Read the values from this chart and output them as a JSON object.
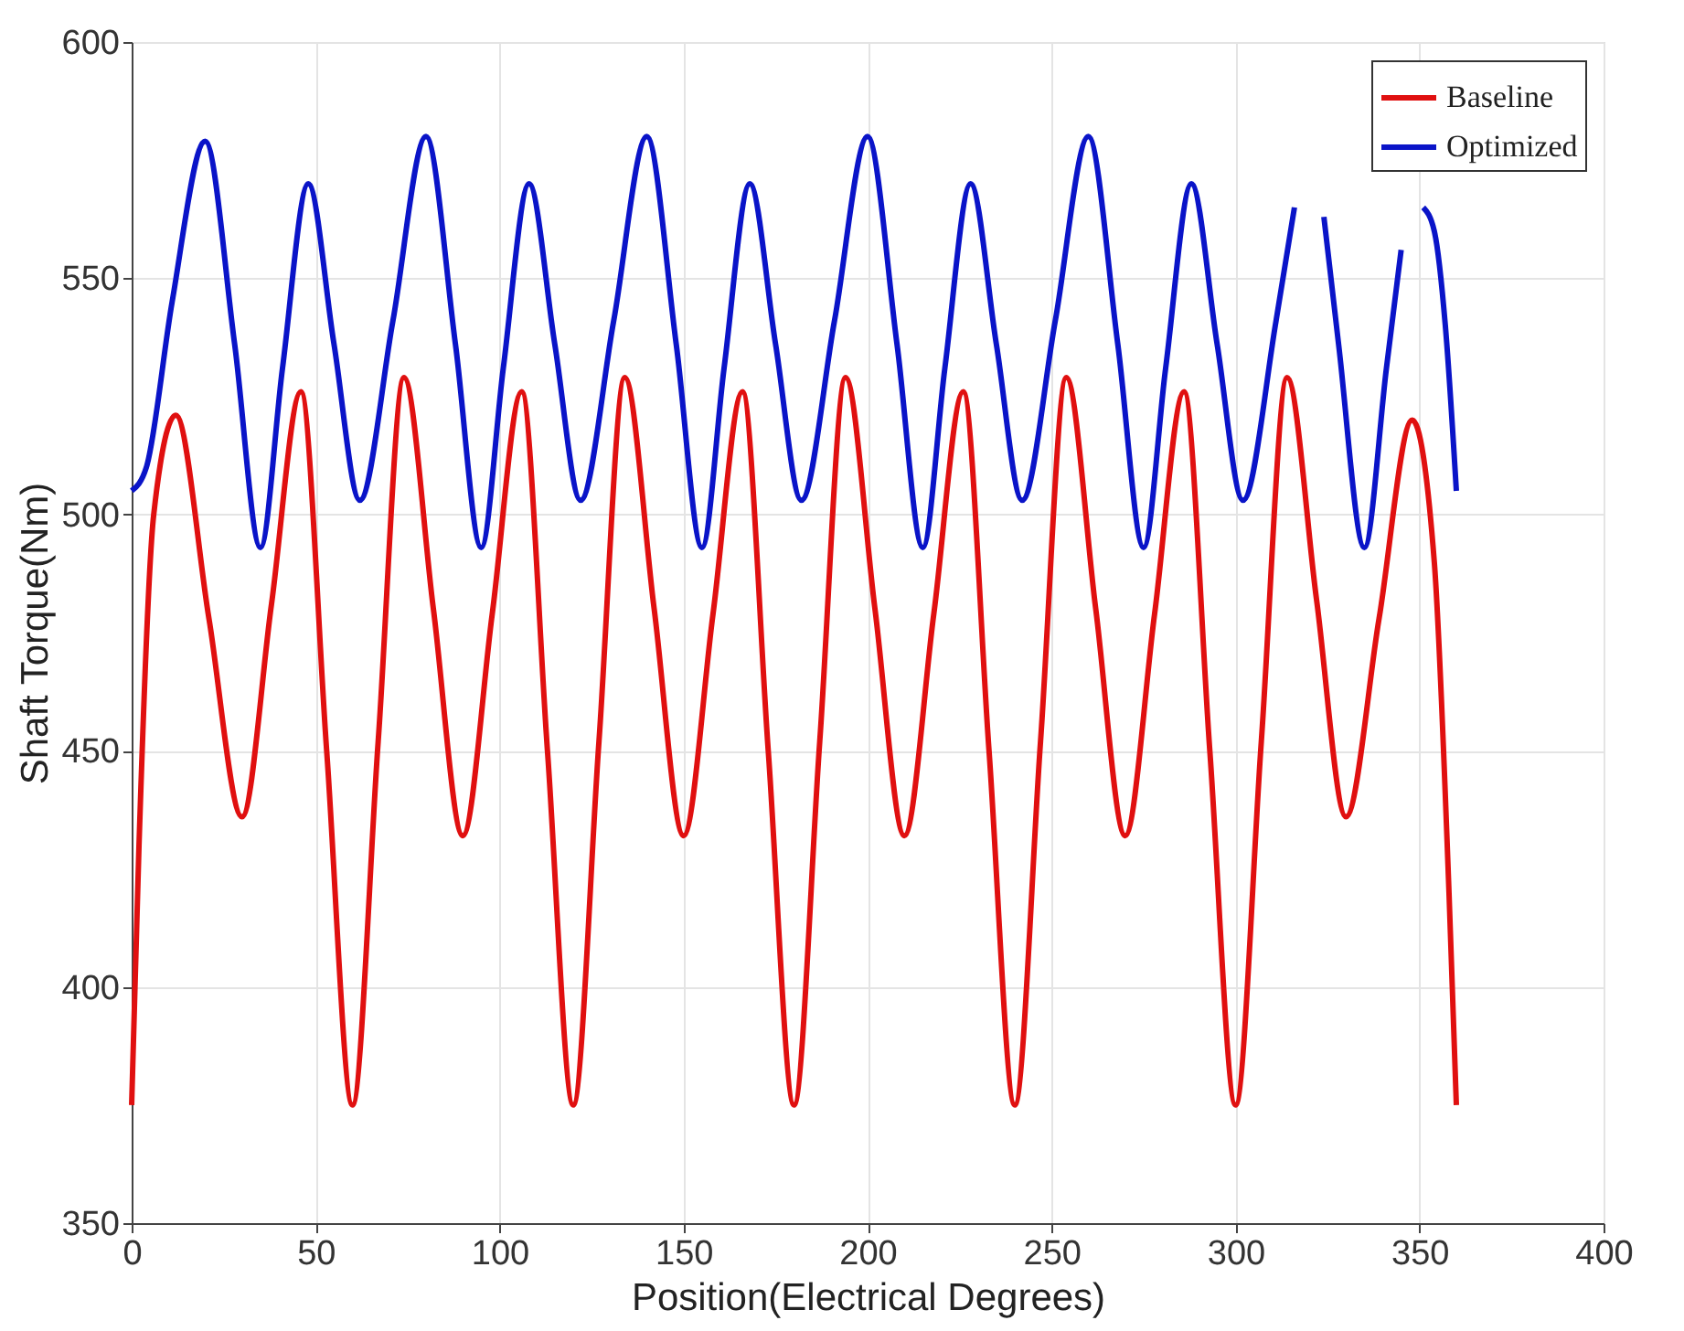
{
  "chart_data": {
    "type": "line",
    "xlabel": "Position(Electrical Degrees)",
    "ylabel": "Shaft Torque(Nm)",
    "xlim": [
      0,
      400
    ],
    "xticks": [
      0,
      50,
      100,
      150,
      200,
      250,
      300,
      350,
      400
    ],
    "ylim": [
      350,
      600
    ],
    "yticks": [
      350,
      400,
      450,
      500,
      550,
      600
    ],
    "grid": true,
    "legend": "top right",
    "line_style": "solid",
    "marker": "none",
    "series": [
      {
        "name": "Baseline",
        "color": "#e01010",
        "x": [
          0,
          2,
          6,
          12,
          21,
          30,
          38,
          46,
          53,
          60,
          67,
          74,
          82,
          90,
          98,
          106,
          113,
          120,
          127,
          134,
          142,
          150,
          158,
          166,
          173,
          180,
          187,
          194,
          202,
          210,
          218,
          226,
          233,
          240,
          247,
          254,
          262,
          270,
          278,
          286,
          293,
          300,
          307,
          314,
          322,
          330,
          339,
          348,
          354,
          358,
          360
        ],
        "values": [
          375,
          430,
          500,
          521,
          478,
          436,
          481,
          526,
          450,
          375,
          452,
          529,
          480,
          432,
          479,
          526,
          450,
          375,
          452,
          529,
          480,
          432,
          479,
          526,
          450,
          375,
          452,
          529,
          480,
          432,
          479,
          526,
          450,
          375,
          452,
          529,
          480,
          432,
          479,
          526,
          450,
          375,
          452,
          529,
          482,
          436,
          478,
          520,
          490,
          420,
          375
        ]
      },
      {
        "name": "Optimized",
        "color": "#0a14c8",
        "x": [
          0,
          4,
          11,
          20,
          28,
          35,
          41,
          48,
          55,
          62,
          71,
          80,
          88,
          95,
          101,
          108,
          115,
          122,
          131,
          140,
          148,
          155,
          161,
          168,
          175,
          182,
          191,
          200,
          208,
          215,
          221,
          228,
          235,
          242,
          251,
          260,
          268,
          275,
          281,
          288,
          295,
          302,
          311,
          316,
          320,
          324,
          328,
          335,
          341,
          345,
          348,
          351,
          354,
          357,
          360
        ],
        "values": [
          505,
          510,
          545,
          579,
          536,
          493,
          531,
          570,
          536,
          503,
          541,
          580,
          536,
          493,
          531,
          570,
          536,
          503,
          541,
          580,
          536,
          493,
          531,
          570,
          536,
          503,
          541,
          580,
          536,
          493,
          531,
          570,
          536,
          503,
          541,
          580,
          536,
          493,
          531,
          570,
          536,
          503,
          541,
          565,
          null,
          563,
          536,
          493,
          531,
          556,
          null,
          565,
          560,
          540,
          505
        ]
      }
    ]
  }
}
